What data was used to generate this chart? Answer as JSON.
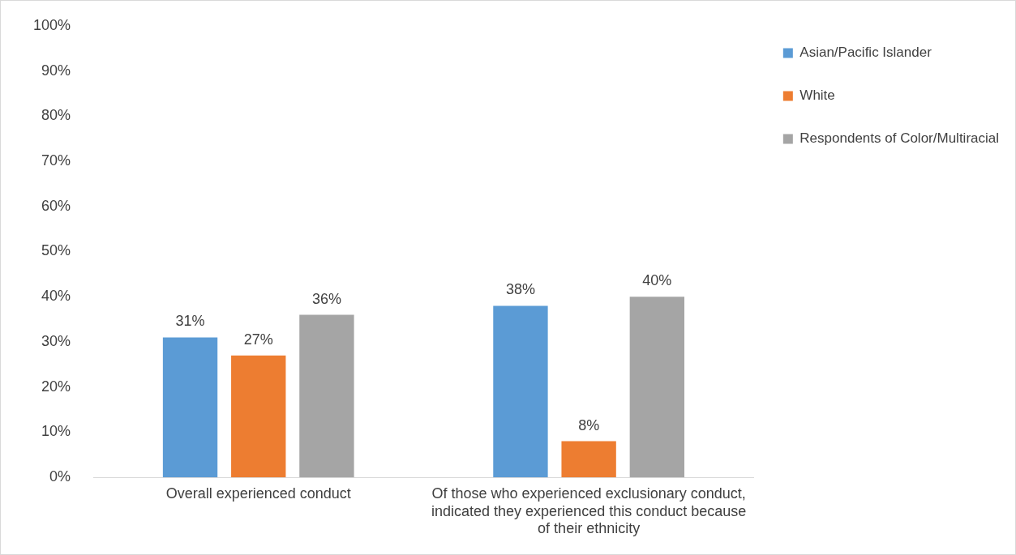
{
  "chart_data": {
    "type": "bar",
    "categories": [
      "Overall experienced conduct",
      "Of those who experienced exclusionary conduct, indicated they experienced this conduct because of their ethnicity"
    ],
    "series": [
      {
        "name": "Asian/Pacific Islander",
        "color": "#5b9bd5",
        "values": [
          31,
          38
        ],
        "value_labels": [
          "31%",
          "38%"
        ]
      },
      {
        "name": "White",
        "color": "#ed7d31",
        "values": [
          27,
          8
        ],
        "value_labels": [
          "27%",
          "8%"
        ]
      },
      {
        "name": "Respondents of Color/Multiracial",
        "color": "#a5a5a5",
        "values": [
          36,
          40
        ],
        "value_labels": [
          "36%",
          "40%"
        ]
      }
    ],
    "ylim": [
      0,
      100
    ],
    "yticks": [
      {
        "value": 0,
        "label": "0%"
      },
      {
        "value": 10,
        "label": "10%"
      },
      {
        "value": 20,
        "label": "20%"
      },
      {
        "value": 30,
        "label": "30%"
      },
      {
        "value": 40,
        "label": "40%"
      },
      {
        "value": 50,
        "label": "50%"
      },
      {
        "value": 60,
        "label": "60%"
      },
      {
        "value": 70,
        "label": "70%"
      },
      {
        "value": 80,
        "label": "80%"
      },
      {
        "value": 90,
        "label": "90%"
      },
      {
        "value": 100,
        "label": "100%"
      }
    ],
    "grid": false,
    "legend": "top right"
  }
}
